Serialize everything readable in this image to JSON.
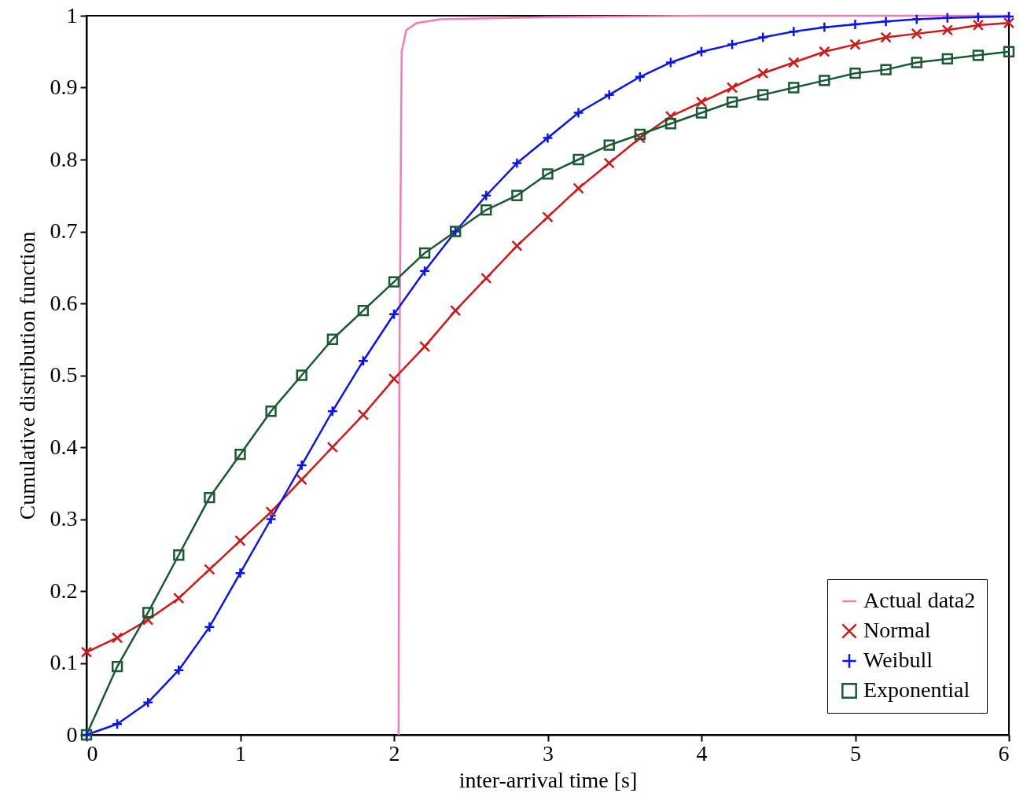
{
  "chart_data": {
    "type": "line",
    "xlabel": "inter-arrival time [s]",
    "ylabel": "Cumulative distribution function",
    "xlim": [
      0,
      6
    ],
    "ylim": [
      0,
      1
    ],
    "xticks": [
      0,
      1,
      2,
      3,
      4,
      5,
      6
    ],
    "yticks": [
      0,
      0.1,
      0.2,
      0.3,
      0.4,
      0.5,
      0.6,
      0.7,
      0.8,
      0.9,
      1
    ],
    "legend": "bottom right",
    "x": [
      0,
      0.2,
      0.4,
      0.6,
      0.8,
      1.0,
      1.2,
      1.4,
      1.6,
      1.8,
      2.0,
      2.2,
      2.4,
      2.6,
      2.8,
      3.0,
      3.2,
      3.4,
      3.6,
      3.8,
      4.0,
      4.2,
      4.4,
      4.6,
      4.8,
      5.0,
      5.2,
      5.4,
      5.6,
      5.8,
      6.0
    ],
    "series": [
      {
        "name": "Actual data2",
        "color": "#f47ab8",
        "marker": "none",
        "x": [
          2.03,
          2.035,
          2.05,
          2.08,
          2.15,
          2.3,
          3,
          4,
          6
        ],
        "values": [
          0,
          0.5,
          0.95,
          0.98,
          0.99,
          0.995,
          0.998,
          1,
          1
        ]
      },
      {
        "name": "Normal",
        "color": "#d01818",
        "marker": "cross",
        "values": [
          0.115,
          0.135,
          0.16,
          0.19,
          0.23,
          0.27,
          0.31,
          0.355,
          0.4,
          0.445,
          0.495,
          0.54,
          0.59,
          0.635,
          0.68,
          0.72,
          0.76,
          0.795,
          0.83,
          0.86,
          0.88,
          0.9,
          0.92,
          0.935,
          0.95,
          0.96,
          0.97,
          0.975,
          0.98,
          0.987,
          0.99
        ]
      },
      {
        "name": "Weibull",
        "color": "#0a14f0",
        "marker": "plus",
        "values": [
          0,
          0.015,
          0.045,
          0.09,
          0.15,
          0.225,
          0.3,
          0.375,
          0.45,
          0.52,
          0.585,
          0.645,
          0.7,
          0.75,
          0.795,
          0.83,
          0.865,
          0.89,
          0.915,
          0.935,
          0.95,
          0.96,
          0.97,
          0.978,
          0.984,
          0.988,
          0.992,
          0.995,
          0.997,
          0.998,
          0.999
        ]
      },
      {
        "name": "Exponential",
        "color": "#1a5a32",
        "marker": "square",
        "values": [
          0,
          0.095,
          0.17,
          0.25,
          0.33,
          0.39,
          0.45,
          0.5,
          0.55,
          0.59,
          0.63,
          0.67,
          0.7,
          0.73,
          0.75,
          0.78,
          0.8,
          0.82,
          0.835,
          0.85,
          0.865,
          0.88,
          0.89,
          0.9,
          0.91,
          0.92,
          0.925,
          0.935,
          0.94,
          0.945,
          0.95
        ]
      }
    ]
  }
}
